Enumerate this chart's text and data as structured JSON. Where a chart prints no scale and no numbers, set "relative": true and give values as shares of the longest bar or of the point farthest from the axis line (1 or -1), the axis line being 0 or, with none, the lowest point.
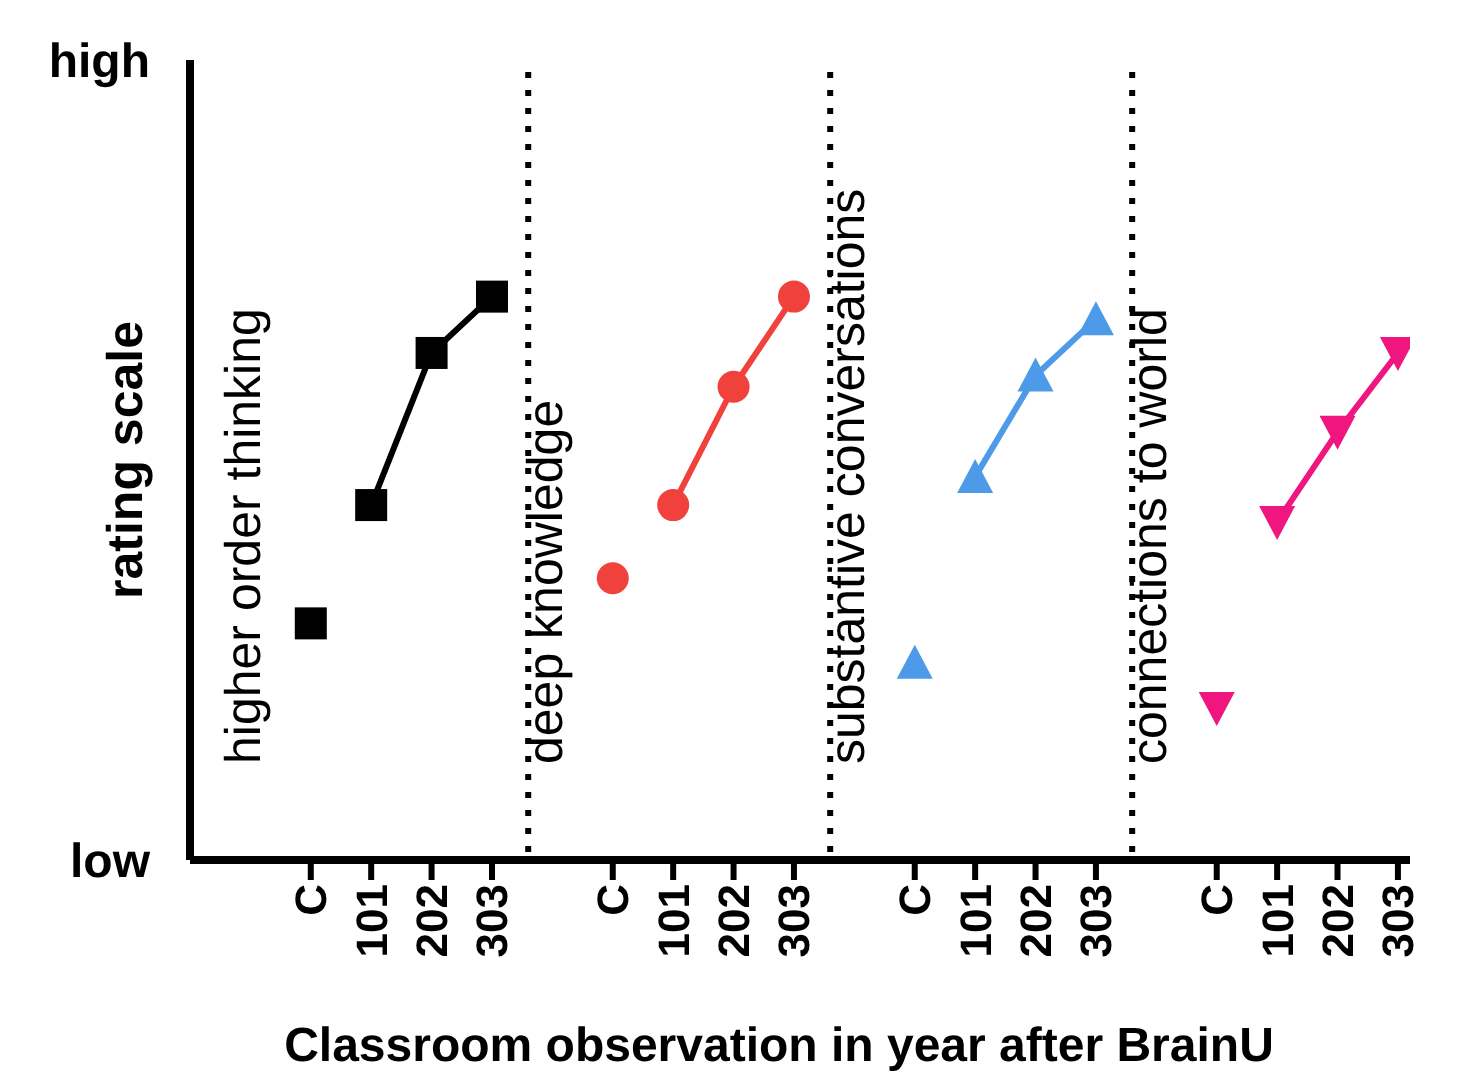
{
  "chart_data": {
    "type": "line",
    "relative": true,
    "ylabel": "rating scale",
    "xlabel": "Classroom observation in year after BrainU",
    "line_style": "solid",
    "categories": [
      null,
      "C",
      "101",
      "202",
      "303",
      null,
      "C",
      "101",
      "202",
      "303",
      null,
      "C",
      "101",
      "202",
      "303",
      null,
      "C",
      "101",
      "202",
      "303"
    ],
    "annotations": [
      "higher order thinking",
      "deep knowledge",
      "substantive conversations",
      "connections to world",
      "high",
      "low"
    ],
    "series": [
      {
        "type": "scatter",
        "color": "#000000",
        "marker": "square",
        "values": [
          null,
          0.42,
          null,
          null,
          null,
          null,
          null,
          null,
          null,
          null,
          null,
          null,
          null,
          null,
          null,
          null,
          null,
          null,
          null,
          null
        ]
      },
      {
        "color": "#000000",
        "marker": "square",
        "values": [
          null,
          null,
          0.63,
          0.9,
          1,
          null,
          null,
          null,
          null,
          null,
          null,
          null,
          null,
          null,
          null,
          null,
          null,
          null,
          null,
          null
        ]
      },
      {
        "type": "scatter",
        "color": "#f0413c",
        "marker": "circle",
        "values": [
          null,
          null,
          null,
          null,
          null,
          null,
          0.5,
          null,
          null,
          null,
          null,
          null,
          null,
          null,
          null,
          null,
          null,
          null,
          null,
          null
        ]
      },
      {
        "color": "#f0413c",
        "marker": "circle",
        "values": [
          null,
          null,
          null,
          null,
          null,
          null,
          null,
          0.63,
          0.84,
          1,
          null,
          null,
          null,
          null,
          null,
          null,
          null,
          null,
          null,
          null
        ]
      },
      {
        "type": "scatter",
        "color": "#4d9be8",
        "marker": "triangle",
        "values": [
          null,
          null,
          null,
          null,
          null,
          null,
          null,
          null,
          null,
          null,
          null,
          0.35,
          null,
          null,
          null,
          null,
          null,
          null,
          null,
          null
        ]
      },
      {
        "color": "#4d9be8",
        "marker": "triangle",
        "values": [
          null,
          null,
          null,
          null,
          null,
          null,
          null,
          null,
          null,
          null,
          null,
          null,
          0.68,
          0.86,
          0.96,
          null,
          null,
          null,
          null,
          null
        ]
      },
      {
        "type": "scatter",
        "color": "#f0167f",
        "marker": "triangle-down",
        "values": [
          null,
          null,
          null,
          null,
          null,
          null,
          null,
          null,
          null,
          null,
          null,
          null,
          null,
          null,
          null,
          null,
          0.27,
          null,
          null,
          null
        ]
      },
      {
        "color": "#f0167f",
        "marker": "triangle-down",
        "values": [
          null,
          null,
          null,
          null,
          null,
          null,
          null,
          null,
          null,
          null,
          null,
          null,
          null,
          null,
          null,
          null,
          null,
          0.6,
          0.76,
          0.9
        ]
      }
    ]
  }
}
